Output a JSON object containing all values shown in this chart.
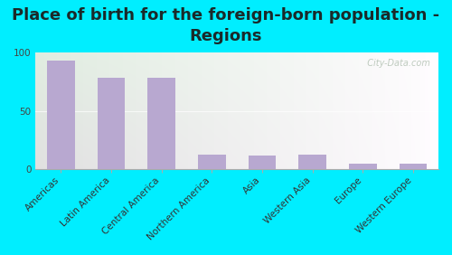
{
  "title": "Place of birth for the foreign-born population -\nRegions",
  "categories": [
    "Americas",
    "Latin America",
    "Central America",
    "Northern America",
    "Asia",
    "Western Asia",
    "Europe",
    "Western Europe"
  ],
  "values": [
    93,
    79,
    79,
    13,
    12,
    13,
    5,
    5
  ],
  "bar_color": "#b8a8d0",
  "background_color": "#00eeff",
  "plot_bg_top": "#f0f5e8",
  "plot_bg_bottom": "#d8edd8",
  "ylim": [
    0,
    100
  ],
  "yticks": [
    0,
    50,
    100
  ],
  "watermark": "  City-Data.com",
  "title_fontsize": 13,
  "tick_fontsize": 7.5,
  "title_color": "#1a2a2a"
}
